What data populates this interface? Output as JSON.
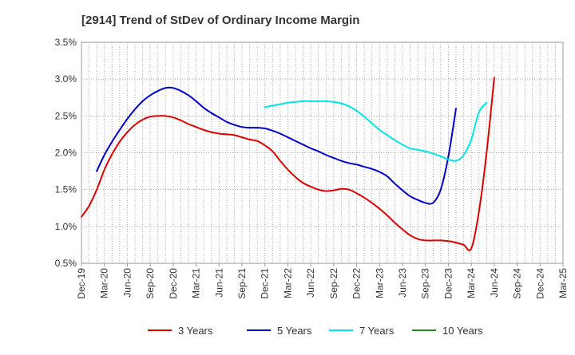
{
  "chart_data": {
    "type": "line",
    "title": "[2914]  Trend of StDev of Ordinary Income Margin",
    "xlabel": "",
    "ylabel": "",
    "ylim": [
      0.5,
      3.5
    ],
    "yticks": [
      {
        "value": 0.5,
        "label": "0.5%"
      },
      {
        "value": 1.0,
        "label": "1.0%"
      },
      {
        "value": 1.5,
        "label": "1.5%"
      },
      {
        "value": 2.0,
        "label": "2.0%"
      },
      {
        "value": 2.5,
        "label": "2.5%"
      },
      {
        "value": 3.0,
        "label": "3.0%"
      },
      {
        "value": 3.5,
        "label": "3.5%"
      }
    ],
    "xticks": [
      "Dec-19",
      "Mar-20",
      "Jun-20",
      "Sep-20",
      "Dec-20",
      "Mar-21",
      "Jun-21",
      "Sep-21",
      "Dec-21",
      "Mar-22",
      "Jun-22",
      "Sep-22",
      "Dec-22",
      "Mar-23",
      "Jun-23",
      "Sep-23",
      "Dec-23",
      "Mar-24",
      "Jun-24",
      "Sep-24",
      "Dec-24",
      "Mar-25"
    ],
    "x_unit": "month",
    "grid": true,
    "legend_position": "bottom",
    "series": [
      {
        "name": "3 Years",
        "color": "#dd0000",
        "points": [
          [
            0,
            1.13
          ],
          [
            1,
            1.28
          ],
          [
            2,
            1.5
          ],
          [
            3,
            1.77
          ],
          [
            4,
            1.98
          ],
          [
            5,
            2.15
          ],
          [
            6,
            2.28
          ],
          [
            7,
            2.38
          ],
          [
            8,
            2.45
          ],
          [
            9,
            2.49
          ],
          [
            10,
            2.5
          ],
          [
            11,
            2.5
          ],
          [
            12,
            2.48
          ],
          [
            13,
            2.44
          ],
          [
            14,
            2.39
          ],
          [
            15,
            2.35
          ],
          [
            16,
            2.31
          ],
          [
            17,
            2.28
          ],
          [
            18,
            2.26
          ],
          [
            19,
            2.25
          ],
          [
            20,
            2.24
          ],
          [
            21,
            2.21
          ],
          [
            22,
            2.18
          ],
          [
            23,
            2.16
          ],
          [
            24,
            2.1
          ],
          [
            25,
            2.02
          ],
          [
            26,
            1.89
          ],
          [
            27,
            1.77
          ],
          [
            28,
            1.67
          ],
          [
            29,
            1.59
          ],
          [
            30,
            1.54
          ],
          [
            31,
            1.5
          ],
          [
            32,
            1.48
          ],
          [
            33,
            1.49
          ],
          [
            34,
            1.51
          ],
          [
            35,
            1.5
          ],
          [
            36,
            1.45
          ],
          [
            37,
            1.39
          ],
          [
            38,
            1.32
          ],
          [
            39,
            1.24
          ],
          [
            40,
            1.15
          ],
          [
            41,
            1.05
          ],
          [
            42,
            0.96
          ],
          [
            43,
            0.88
          ],
          [
            44,
            0.83
          ],
          [
            45,
            0.81
          ],
          [
            46,
            0.81
          ],
          [
            47,
            0.81
          ],
          [
            48,
            0.8
          ],
          [
            49,
            0.78
          ],
          [
            50,
            0.75
          ],
          [
            51,
            0.7
          ],
          [
            52,
            1.2
          ],
          [
            53,
            2.0
          ],
          [
            54,
            3.02
          ]
        ]
      },
      {
        "name": "5 Years",
        "color": "#0000cc",
        "points": [
          [
            2,
            1.75
          ],
          [
            3,
            1.97
          ],
          [
            4,
            2.15
          ],
          [
            5,
            2.31
          ],
          [
            6,
            2.46
          ],
          [
            7,
            2.59
          ],
          [
            8,
            2.7
          ],
          [
            9,
            2.78
          ],
          [
            10,
            2.84
          ],
          [
            11,
            2.88
          ],
          [
            12,
            2.88
          ],
          [
            13,
            2.84
          ],
          [
            14,
            2.78
          ],
          [
            15,
            2.7
          ],
          [
            16,
            2.61
          ],
          [
            17,
            2.54
          ],
          [
            18,
            2.48
          ],
          [
            19,
            2.42
          ],
          [
            20,
            2.38
          ],
          [
            21,
            2.35
          ],
          [
            22,
            2.34
          ],
          [
            23,
            2.34
          ],
          [
            24,
            2.33
          ],
          [
            25,
            2.3
          ],
          [
            26,
            2.26
          ],
          [
            27,
            2.21
          ],
          [
            28,
            2.16
          ],
          [
            29,
            2.11
          ],
          [
            30,
            2.06
          ],
          [
            31,
            2.02
          ],
          [
            32,
            1.97
          ],
          [
            33,
            1.93
          ],
          [
            34,
            1.89
          ],
          [
            35,
            1.86
          ],
          [
            36,
            1.84
          ],
          [
            37,
            1.81
          ],
          [
            38,
            1.78
          ],
          [
            39,
            1.74
          ],
          [
            40,
            1.68
          ],
          [
            41,
            1.58
          ],
          [
            42,
            1.49
          ],
          [
            43,
            1.41
          ],
          [
            44,
            1.36
          ],
          [
            45,
            1.32
          ],
          [
            46,
            1.32
          ],
          [
            47,
            1.5
          ],
          [
            48,
            1.95
          ],
          [
            49,
            2.6
          ]
        ]
      },
      {
        "name": "7 Years",
        "color": "#00e5e5",
        "points": [
          [
            24,
            2.62
          ],
          [
            25,
            2.64
          ],
          [
            26,
            2.66
          ],
          [
            27,
            2.68
          ],
          [
            28,
            2.69
          ],
          [
            29,
            2.7
          ],
          [
            30,
            2.7
          ],
          [
            31,
            2.7
          ],
          [
            32,
            2.7
          ],
          [
            33,
            2.69
          ],
          [
            34,
            2.67
          ],
          [
            35,
            2.63
          ],
          [
            36,
            2.57
          ],
          [
            37,
            2.49
          ],
          [
            38,
            2.4
          ],
          [
            39,
            2.31
          ],
          [
            40,
            2.24
          ],
          [
            41,
            2.17
          ],
          [
            42,
            2.11
          ],
          [
            43,
            2.06
          ],
          [
            44,
            2.04
          ],
          [
            45,
            2.02
          ],
          [
            46,
            1.99
          ],
          [
            47,
            1.95
          ],
          [
            48,
            1.91
          ],
          [
            49,
            1.89
          ],
          [
            50,
            1.97
          ],
          [
            51,
            2.18
          ],
          [
            52,
            2.55
          ],
          [
            53,
            2.68
          ]
        ]
      },
      {
        "name": "10 Years",
        "color": "#228b22",
        "points": []
      }
    ]
  }
}
